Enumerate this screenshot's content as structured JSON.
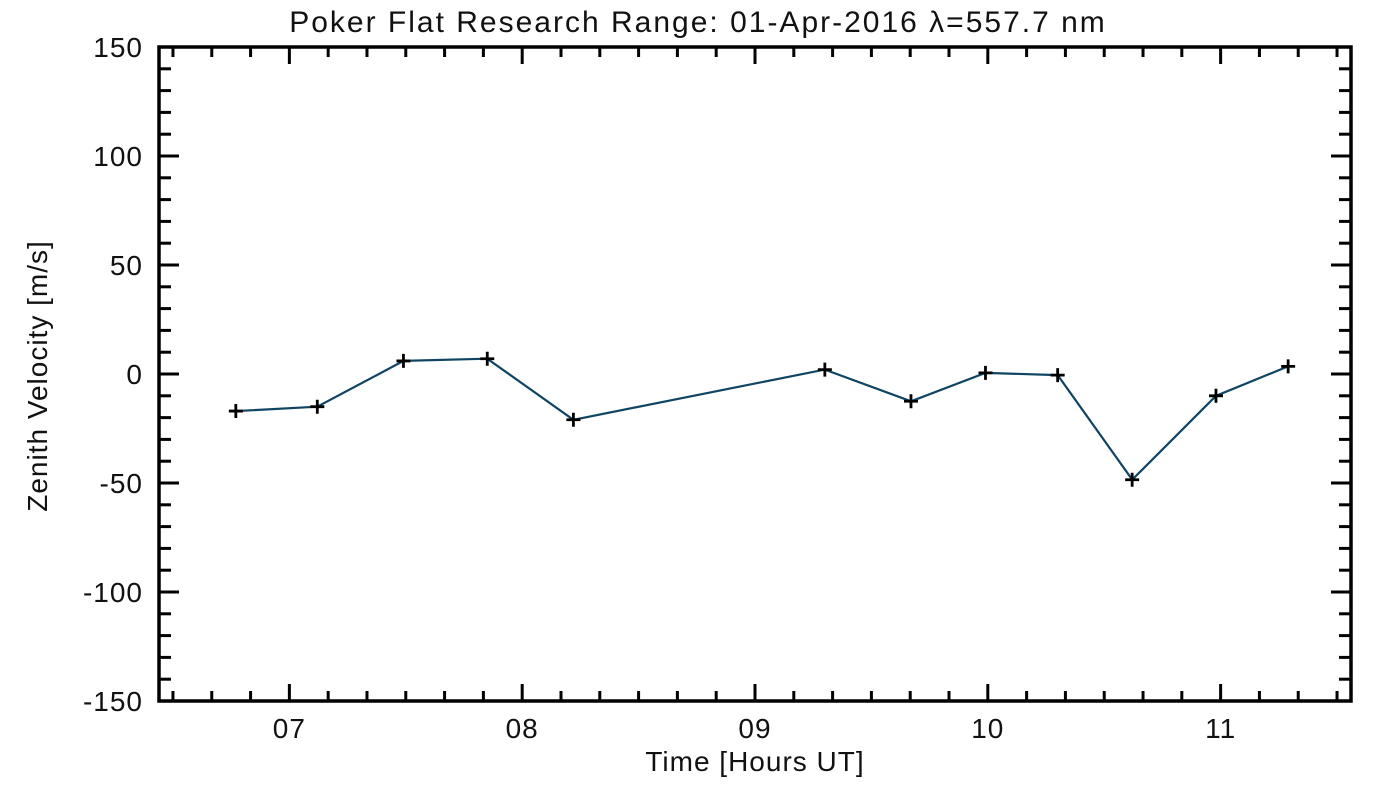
{
  "title": "Poker Flat Research Range: 01-Apr-2016 λ=557.7 nm",
  "chart_data": {
    "type": "line",
    "title": "Poker Flat Research Range: 01-Apr-2016 λ=557.7 nm",
    "xlabel": "Time [Hours UT]",
    "ylabel": "Zenith Velocity [m/s]",
    "xlim": [
      6.44,
      11.56
    ],
    "ylim": [
      -150,
      150
    ],
    "grid": false,
    "legend": null,
    "x_major_ticks": [
      {
        "value": 7,
        "label": "07"
      },
      {
        "value": 8,
        "label": "08"
      },
      {
        "value": 9,
        "label": "09"
      },
      {
        "value": 10,
        "label": "10"
      },
      {
        "value": 11,
        "label": "11"
      }
    ],
    "x_minor_per_hour": 6,
    "y_major_ticks": [
      {
        "value": 150,
        "label": "150"
      },
      {
        "value": 100,
        "label": "100"
      },
      {
        "value": 50,
        "label": "50"
      },
      {
        "value": 0,
        "label": "0"
      },
      {
        "value": -50,
        "label": "-50"
      },
      {
        "value": -100,
        "label": "-100"
      },
      {
        "value": -150,
        "label": "-150"
      }
    ],
    "y_minor_step": 10,
    "axis_color": "#000000",
    "background_color": "#ffffff",
    "series": [
      {
        "name": "zenith-velocity",
        "color": "#0f4563",
        "marker": "plus",
        "marker_color": "#000000",
        "x": [
          6.77,
          7.12,
          7.49,
          7.85,
          8.22,
          9.3,
          9.67,
          9.99,
          10.3,
          10.62,
          10.98,
          11.29
        ],
        "y": [
          -17,
          -15,
          6,
          7,
          -21,
          2,
          -12.5,
          0.5,
          -0.5,
          -48.5,
          -10,
          3.5
        ]
      }
    ]
  }
}
